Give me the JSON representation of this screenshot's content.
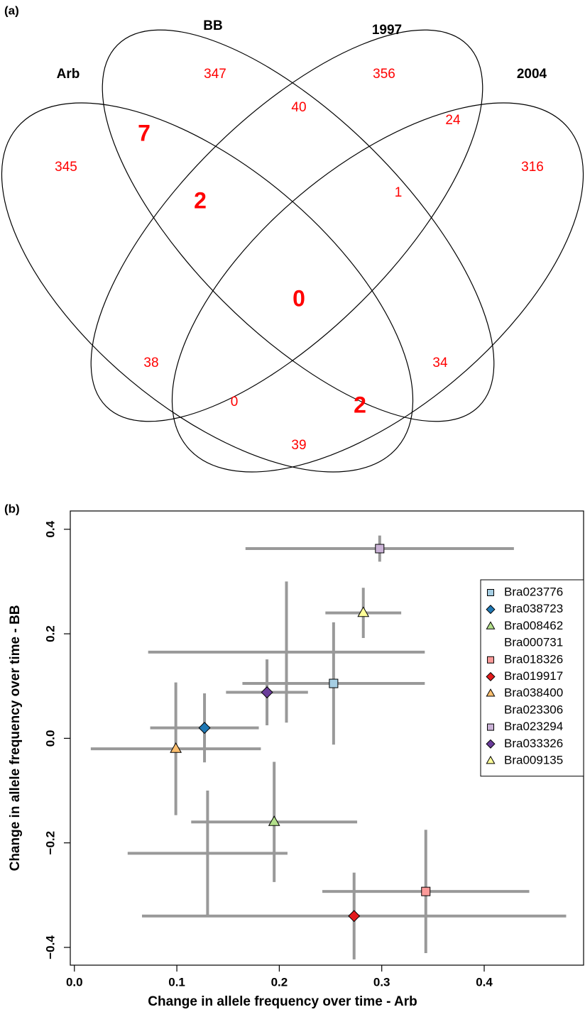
{
  "chart_data": [
    {
      "type": "venn",
      "panel": "(a)",
      "sets": [
        "Arb",
        "BB",
        "1997",
        "2004"
      ],
      "color": "#ff0000",
      "regions": [
        {
          "sets": [
            "Arb"
          ],
          "value": 345
        },
        {
          "sets": [
            "BB"
          ],
          "value": 347
        },
        {
          "sets": [
            "1997"
          ],
          "value": 356
        },
        {
          "sets": [
            "2004"
          ],
          "value": 316
        },
        {
          "sets": [
            "Arb",
            "BB"
          ],
          "value": 7,
          "emphasis": true
        },
        {
          "sets": [
            "BB",
            "1997"
          ],
          "value": 40
        },
        {
          "sets": [
            "1997",
            "2004"
          ],
          "value": 24
        },
        {
          "sets": [
            "Arb",
            "BB",
            "1997"
          ],
          "value": 2,
          "emphasis": true
        },
        {
          "sets": [
            "BB",
            "1997",
            "2004"
          ],
          "value": 1
        },
        {
          "sets": [
            "Arb",
            "BB",
            "1997",
            "2004"
          ],
          "value": 0,
          "emphasis": true
        },
        {
          "sets": [
            "Arb",
            "1997"
          ],
          "value": 38
        },
        {
          "sets": [
            "BB",
            "2004"
          ],
          "value": 34
        },
        {
          "sets": [
            "Arb",
            "1997",
            "2004"
          ],
          "value": 0
        },
        {
          "sets": [
            "Arb",
            "BB",
            "2004"
          ],
          "value": 2,
          "emphasis": true
        },
        {
          "sets": [
            "Arb",
            "2004"
          ],
          "value": 39
        }
      ]
    },
    {
      "type": "scatter",
      "panel": "(b)",
      "x_label": "Change in allele frequency over time - Arb",
      "y_label": "Change in allele frequency over time - BB",
      "xlim": [
        -0.004,
        0.497
      ],
      "ylim": [
        -0.434,
        0.435
      ],
      "xticks": [
        {
          "value": 0,
          "label": "0.0"
        },
        0.1,
        0.2,
        0.3,
        0.4
      ],
      "yticks": [
        {
          "value": -0.4,
          "label": "−0.4"
        },
        {
          "value": -0.2,
          "label": "−0.2"
        },
        {
          "value": 0,
          "label": "0.0"
        },
        0.2,
        0.4
      ],
      "error_color": "#999999",
      "legend": "right",
      "series": [
        {
          "name": "Bra023776",
          "color": "#a6cee3",
          "marker": "square",
          "x": [
            0.253
          ],
          "values": [
            0.105
          ],
          "xerr": [
            0.089
          ],
          "yerr": [
            0.117
          ]
        },
        {
          "name": "Bra038723",
          "color": "#1f78b4",
          "marker": "diamond",
          "x": [
            0.127
          ],
          "values": [
            0.02
          ],
          "xerr": [
            0.053
          ],
          "yerr": [
            0.066
          ]
        },
        {
          "name": "Bra008462",
          "color": "#b2df8a",
          "marker": "triangle",
          "x": [
            0.195
          ],
          "values": [
            -0.16
          ],
          "xerr": [
            0.081
          ],
          "yerr": [
            0.115
          ]
        },
        {
          "name": "Bra000731",
          "marker": null,
          "x": [
            0.207
          ],
          "values": [
            0.165
          ],
          "xerr": [
            0.135
          ],
          "yerr": [
            0.135
          ]
        },
        {
          "name": "Bra018326",
          "color": "#fb9a99",
          "marker": "square",
          "x": [
            0.343
          ],
          "values": [
            -0.293
          ],
          "xerr": [
            0.101
          ],
          "yerr": [
            0.118
          ]
        },
        {
          "name": "Bra019917",
          "color": "#e31a1c",
          "marker": "diamond",
          "x": [
            0.273
          ],
          "values": [
            -0.34
          ],
          "xerr": [
            0.207
          ],
          "yerr": [
            0.083
          ]
        },
        {
          "name": "Bra038400",
          "color": "#fdbf6f",
          "marker": "triangle",
          "x": [
            0.099
          ],
          "values": [
            -0.02
          ],
          "xerr": [
            0.083
          ],
          "yerr": [
            0.127
          ]
        },
        {
          "name": "Bra023306",
          "marker": null,
          "x": [
            0.13
          ],
          "values": [
            -0.22
          ],
          "xerr": [
            0.078
          ],
          "yerr": [
            0.12
          ]
        },
        {
          "name": "Bra023294",
          "color": "#cab2d6",
          "marker": "square",
          "x": [
            0.298
          ],
          "values": [
            0.363
          ],
          "xerr": [
            0.131
          ],
          "yerr": [
            0.025
          ]
        },
        {
          "name": "Bra033326",
          "color": "#6a3d9a",
          "marker": "diamond",
          "x": [
            0.188
          ],
          "values": [
            0.088
          ],
          "xerr": [
            0.04
          ],
          "yerr": [
            0.063
          ]
        },
        {
          "name": "Bra009135",
          "color": "#ffff99",
          "marker": "triangle",
          "x": [
            0.282
          ],
          "values": [
            0.24
          ],
          "xerr": [
            0.037
          ],
          "yerr": [
            0.048
          ]
        }
      ]
    }
  ]
}
